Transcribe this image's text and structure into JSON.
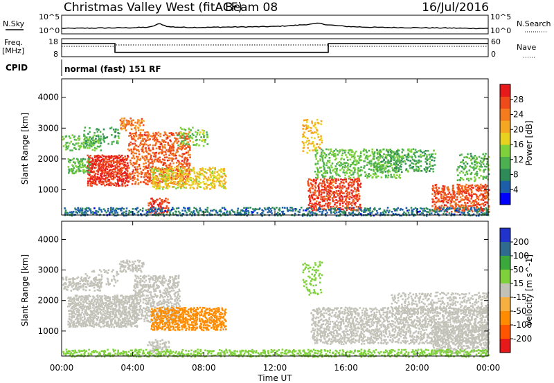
{
  "header": {
    "title": "Christmas Valley West (fitACF)",
    "beam": "Beam 08",
    "date": "16/Jul/2016"
  },
  "strip_labels": {
    "nsky": "N.Sky",
    "nsearch": "N.Search",
    "freq_line1": "Freq.",
    "freq_line2": "[MHz]",
    "nave": "Nave",
    "cpid": "CPID",
    "cpid_value": "normal (fast) 151 RF"
  },
  "colors": {
    "power": [
      "#0000ff",
      "#1c5fa8",
      "#2e8b57",
      "#4caf50",
      "#7fd13b",
      "#e8d21f",
      "#f5a623",
      "#f47b1e",
      "#ee4a1a",
      "#e61a1a"
    ],
    "velocity": [
      "#e61a1a",
      "#ff5500",
      "#ff8c00",
      "#f5b041",
      "#c2c2b8",
      "#7fd13b",
      "#3aa83a",
      "#2e6b8f",
      "#2233cc"
    ],
    "ground_scatter": "#c2c2b8"
  },
  "chart_data": [
    {
      "type": "line",
      "name": "noise-panel",
      "xlabel": "",
      "ylabel": "N.Sky",
      "ylabel_right": "N.Search",
      "y_ticks": [
        "10^5",
        "10^0"
      ],
      "y_ticks_right": [
        "10^5",
        "10^0"
      ],
      "log_scale": true,
      "x_hours": [
        0,
        1,
        2,
        3,
        4,
        5,
        5.5,
        6,
        7,
        8,
        9,
        10,
        11,
        12,
        13,
        14,
        14.5,
        15,
        16,
        17,
        18,
        19,
        20,
        21,
        22,
        23,
        24
      ],
      "series": [
        {
          "values": [
            1.3,
            1.35,
            1.4,
            1.45,
            1.5,
            1.7,
            2.8,
            1.8,
            1.6,
            1.6,
            1.7,
            1.75,
            1.8,
            1.9,
            2.2,
            2.6,
            2.9,
            2.4,
            1.9,
            1.7,
            1.6,
            1.55,
            1.5,
            1.45,
            1.4,
            1.3,
            1.3
          ]
        }
      ]
    },
    {
      "type": "line",
      "name": "frequency-panel",
      "xlabel": "",
      "ylabel": "Freq. [MHz]",
      "ylabel_right": "Nave",
      "ylim": [
        8,
        18
      ],
      "ylim_right": [
        0,
        60
      ],
      "y_ticks": [
        18,
        8
      ],
      "y_ticks_right": [
        60,
        0
      ],
      "series": [
        {
          "x": [
            0,
            3,
            3,
            15,
            15,
            24
          ],
          "values": [
            15.5,
            15.5,
            10.2,
            10.2,
            15.5,
            15.5
          ]
        },
        {
          "x": [
            0,
            3,
            3,
            15,
            15,
            24
          ],
          "values": [
            35,
            35,
            40,
            40,
            35,
            35
          ],
          "style": "dotted"
        }
      ]
    },
    {
      "type": "heatmap",
      "name": "power-panel",
      "ylabel": "Slant Range [km]",
      "xlabel": "",
      "xlim": [
        0,
        24
      ],
      "ylim": [
        180,
        4600
      ],
      "y_ticks": [
        1000,
        2000,
        3000,
        4000
      ],
      "colorbar": {
        "label": "Power [dB]",
        "ticks": [
          4,
          8,
          12,
          16,
          20,
          24,
          28
        ],
        "range": [
          0,
          32
        ]
      },
      "regions": [
        {
          "t0": 1.4,
          "t1": 3.7,
          "r0": 1150,
          "r1": 2150,
          "value": 29,
          "density": 0.85
        },
        {
          "t0": 0.3,
          "t1": 1.6,
          "r0": 1550,
          "r1": 2050,
          "value": 12,
          "density": 0.6
        },
        {
          "t0": 0.0,
          "t1": 2.2,
          "r0": 2300,
          "r1": 2800,
          "value": 13,
          "density": 0.45
        },
        {
          "t0": 1.2,
          "t1": 3.2,
          "r0": 2500,
          "r1": 3050,
          "value": 10,
          "density": 0.3
        },
        {
          "t0": 3.2,
          "t1": 4.6,
          "r0": 2950,
          "r1": 3350,
          "value": 24,
          "density": 0.55
        },
        {
          "t0": 3.7,
          "t1": 7.2,
          "r0": 1200,
          "r1": 2900,
          "value": 26,
          "density": 0.5
        },
        {
          "t0": 5.0,
          "t1": 9.2,
          "r0": 1050,
          "r1": 1750,
          "value": 18,
          "density": 0.55
        },
        {
          "t0": 4.8,
          "t1": 6.0,
          "r0": 250,
          "r1": 750,
          "value": 28,
          "density": 0.55
        },
        {
          "t0": 6.5,
          "t1": 8.2,
          "r0": 2450,
          "r1": 3050,
          "value": 14,
          "density": 0.35
        },
        {
          "t0": 13.5,
          "t1": 14.6,
          "r0": 2200,
          "r1": 3300,
          "value": 20,
          "density": 0.3
        },
        {
          "t0": 13.8,
          "t1": 16.8,
          "r0": 350,
          "r1": 1400,
          "value": 28,
          "density": 0.6
        },
        {
          "t0": 14.2,
          "t1": 19.0,
          "r0": 1400,
          "r1": 2350,
          "value": 13,
          "density": 0.45
        },
        {
          "t0": 17.5,
          "t1": 21.0,
          "r0": 1600,
          "r1": 2350,
          "value": 11,
          "density": 0.4
        },
        {
          "t0": 20.8,
          "t1": 24.0,
          "r0": 300,
          "r1": 1200,
          "value": 27,
          "density": 0.55
        },
        {
          "t0": 22.2,
          "t1": 24.0,
          "r0": 1300,
          "r1": 2200,
          "value": 12,
          "density": 0.35
        },
        {
          "t0": 0.0,
          "t1": 24.0,
          "r0": 180,
          "r1": 450,
          "value": 6,
          "density": 0.5
        }
      ]
    },
    {
      "type": "heatmap",
      "name": "velocity-panel",
      "ylabel": "Slant Range [km]",
      "xlabel": "Time UT",
      "xlim": [
        0,
        24
      ],
      "ylim": [
        180,
        4600
      ],
      "x_ticks": [
        "00:00",
        "04:00",
        "08:00",
        "12:00",
        "16:00",
        "20:00",
        "00:00"
      ],
      "y_ticks": [
        1000,
        2000,
        3000,
        4000
      ],
      "colorbar": {
        "label": "Velocity [m s^-1]",
        "ticks": [
          200,
          100,
          50,
          15,
          -15,
          -50,
          -100,
          -200
        ],
        "range": [
          -250,
          250
        ]
      },
      "regions": [
        {
          "t0": 0.3,
          "t1": 4.2,
          "r0": 1150,
          "r1": 2200,
          "value": 0,
          "density": 0.85
        },
        {
          "t0": 0.0,
          "t1": 2.2,
          "r0": 2350,
          "r1": 2800,
          "value": 0,
          "density": 0.6
        },
        {
          "t0": 1.2,
          "t1": 3.2,
          "r0": 2500,
          "r1": 3050,
          "value": 0,
          "density": 0.3
        },
        {
          "t0": 3.2,
          "t1": 4.6,
          "r0": 2950,
          "r1": 3350,
          "value": 0,
          "density": 0.5
        },
        {
          "t0": 4.0,
          "t1": 6.6,
          "r0": 1300,
          "r1": 2850,
          "value": 0,
          "density": 0.55
        },
        {
          "t0": 5.0,
          "t1": 9.2,
          "r0": 1050,
          "r1": 1800,
          "value": -55,
          "density": 0.75
        },
        {
          "t0": 4.8,
          "t1": 6.0,
          "r0": 250,
          "r1": 750,
          "value": 0,
          "density": 0.5
        },
        {
          "t0": 13.5,
          "t1": 14.6,
          "r0": 2200,
          "r1": 3300,
          "value": 40,
          "density": 0.3
        },
        {
          "t0": 14.0,
          "t1": 24.0,
          "r0": 600,
          "r1": 1800,
          "value": 0,
          "density": 0.6
        },
        {
          "t0": 18.5,
          "t1": 24.0,
          "r0": 1600,
          "r1": 2300,
          "value": 0,
          "density": 0.35
        },
        {
          "t0": 20.8,
          "t1": 24.0,
          "r0": 300,
          "r1": 1200,
          "value": 0,
          "density": 0.55
        },
        {
          "t0": 0.0,
          "t1": 24.0,
          "r0": 180,
          "r1": 420,
          "value": 40,
          "density": 0.6
        }
      ]
    }
  ]
}
